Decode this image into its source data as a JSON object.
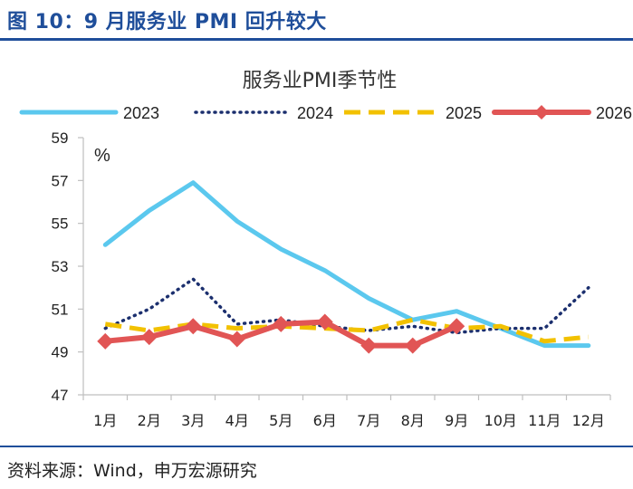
{
  "figure": {
    "caption": "图 10：9 月服务业 PMI 回升较大",
    "source": "资料来源：Wind，申万宏源研究"
  },
  "chart_data": {
    "type": "line",
    "title": "服务业PMI季节性",
    "unit": "%",
    "categories": [
      "1月",
      "2月",
      "3月",
      "4月",
      "5月",
      "6月",
      "7月",
      "8月",
      "9月",
      "10月",
      "11月",
      "12月"
    ],
    "ylim": [
      47,
      59
    ],
    "yticks": [
      47,
      49,
      51,
      53,
      55,
      57,
      59
    ],
    "legend_position": "top",
    "series": [
      {
        "name": "2023",
        "color": "#5bc8ee",
        "style": "solid",
        "values": [
          54.0,
          55.6,
          56.9,
          55.1,
          53.8,
          52.8,
          51.5,
          50.5,
          50.9,
          50.1,
          49.3,
          49.3
        ]
      },
      {
        "name": "2024",
        "color": "#1b2f6e",
        "style": "dotted",
        "values": [
          50.1,
          51.0,
          52.4,
          50.3,
          50.5,
          50.2,
          50.0,
          50.2,
          49.9,
          50.1,
          50.1,
          52.0
        ]
      },
      {
        "name": "2025",
        "color": "#f2c100",
        "style": "dashed",
        "values": [
          50.3,
          50.0,
          50.3,
          50.1,
          50.2,
          50.1,
          50.0,
          50.5,
          50.1,
          50.2,
          49.5,
          49.7
        ]
      },
      {
        "name": "2026",
        "color": "#e15555",
        "style": "solid-marker",
        "values": [
          49.5,
          49.7,
          50.2,
          49.6,
          50.3,
          50.4,
          49.3,
          49.3,
          50.2,
          null,
          null,
          null
        ]
      }
    ]
  }
}
